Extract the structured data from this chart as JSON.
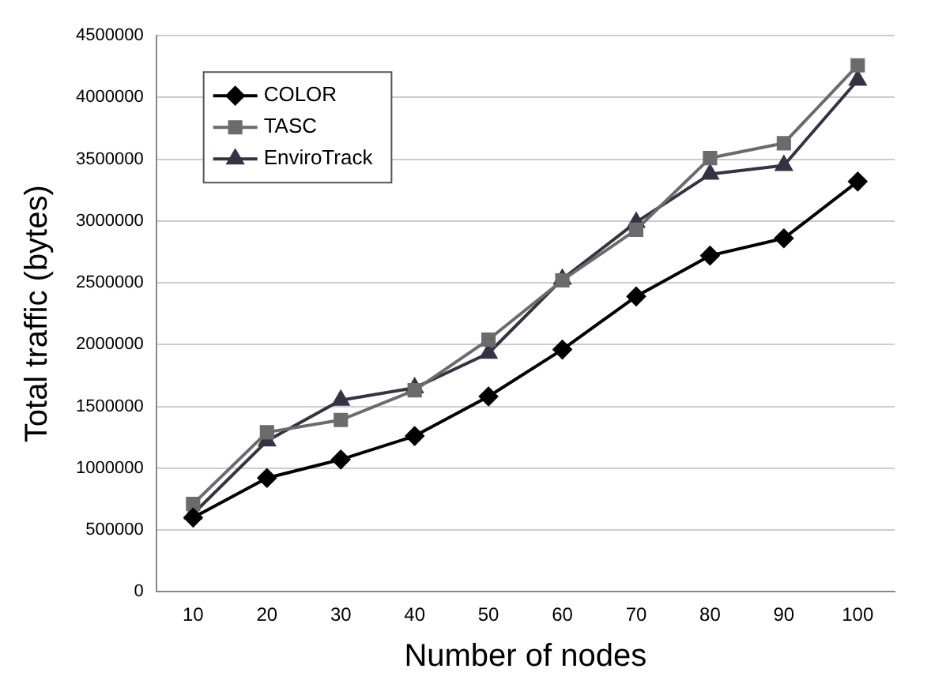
{
  "chart_data": {
    "type": "line",
    "xlabel": "Number of nodes",
    "ylabel": "Total traffic (bytes)",
    "categories": [
      "10",
      "20",
      "30",
      "40",
      "50",
      "60",
      "70",
      "80",
      "90",
      "100"
    ],
    "series": [
      {
        "name": "COLOR",
        "color": "#000000",
        "marker": "diamond",
        "values": [
          600000,
          920000,
          1070000,
          1260000,
          1580000,
          1960000,
          2390000,
          2720000,
          2860000,
          3320000
        ]
      },
      {
        "name": "TASC",
        "color": "#6b6b6b",
        "marker": "square",
        "values": [
          710000,
          1290000,
          1390000,
          1630000,
          2040000,
          2520000,
          2930000,
          3510000,
          3630000,
          4260000
        ]
      },
      {
        "name": "EnviroTrack",
        "color": "#333344",
        "marker": "triangle",
        "values": [
          630000,
          1220000,
          1550000,
          1650000,
          1930000,
          2530000,
          2990000,
          3380000,
          3450000,
          4140000
        ]
      }
    ],
    "ylim": [
      0,
      4500000
    ],
    "yticks": [
      0,
      500000,
      1000000,
      1500000,
      2000000,
      2500000,
      3000000,
      3500000,
      4000000,
      4500000
    ],
    "grid": "y",
    "legend": "top left"
  }
}
